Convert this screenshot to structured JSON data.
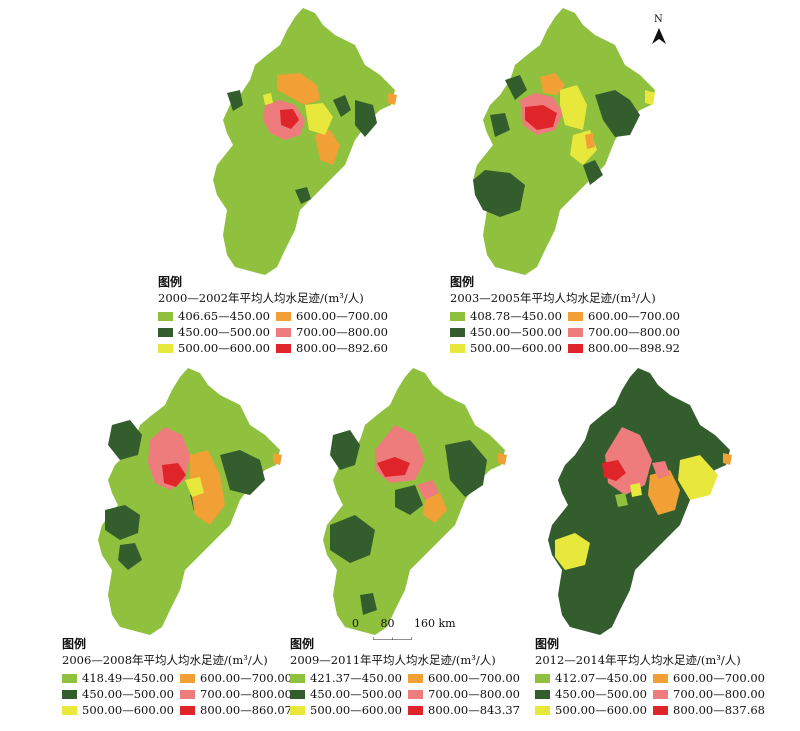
{
  "colors": {
    "c1": "#8fc03e",
    "c2": "#335d2d",
    "c3": "#e8e83c",
    "c4": "#f0a035",
    "c5": "#ef7c7c",
    "c6": "#e0252a"
  },
  "north": {
    "label": "N",
    "icon": "north-arrow-icon"
  },
  "scale": {
    "ticks": [
      "0",
      "80",
      "160 km"
    ]
  },
  "maps": [
    {
      "legend_title": "图例",
      "subtitle": "2000—2002年平均人均水足迹/(m³/人)",
      "classes": [
        {
          "label": "406.65—450.00",
          "color": "#8fc03e"
        },
        {
          "label": "600.00—700.00",
          "color": "#f0a035"
        },
        {
          "label": "450.00—500.00",
          "color": "#335d2d"
        },
        {
          "label": "700.00—800.00",
          "color": "#ef7c7c"
        },
        {
          "label": "500.00—600.00",
          "color": "#e8e83c"
        },
        {
          "label": "800.00—892.60",
          "color": "#e0252a"
        }
      ],
      "base_color": "#8fc03e"
    },
    {
      "legend_title": "图例",
      "subtitle": "2003—2005年平均人均水足迹/(m³/人)",
      "classes": [
        {
          "label": "408.78—450.00",
          "color": "#8fc03e"
        },
        {
          "label": "600.00—700.00",
          "color": "#f0a035"
        },
        {
          "label": "450.00—500.00",
          "color": "#335d2d"
        },
        {
          "label": "700.00—800.00",
          "color": "#ef7c7c"
        },
        {
          "label": "500.00—600.00",
          "color": "#e8e83c"
        },
        {
          "label": "800.00—898.92",
          "color": "#e0252a"
        }
      ],
      "base_color": "#8fc03e"
    },
    {
      "legend_title": "图例",
      "subtitle": "2006—2008年平均人均水足迹/(m³/人)",
      "classes": [
        {
          "label": "418.49—450.00",
          "color": "#8fc03e"
        },
        {
          "label": "600.00—700.00",
          "color": "#f0a035"
        },
        {
          "label": "450.00—500.00",
          "color": "#335d2d"
        },
        {
          "label": "700.00—800.00",
          "color": "#ef7c7c"
        },
        {
          "label": "500.00—600.00",
          "color": "#e8e83c"
        },
        {
          "label": "800.00—860.07",
          "color": "#e0252a"
        }
      ],
      "base_color": "#8fc03e"
    },
    {
      "legend_title": "图例",
      "subtitle": "2009—2011年平均人均水足迹/(m³/人)",
      "classes": [
        {
          "label": "421.37—450.00",
          "color": "#8fc03e"
        },
        {
          "label": "600.00—700.00",
          "color": "#f0a035"
        },
        {
          "label": "450.00—500.00",
          "color": "#335d2d"
        },
        {
          "label": "700.00—800.00",
          "color": "#ef7c7c"
        },
        {
          "label": "500.00—600.00",
          "color": "#e8e83c"
        },
        {
          "label": "800.00—843.37",
          "color": "#e0252a"
        }
      ],
      "base_color": "#8fc03e"
    },
    {
      "legend_title": "图例",
      "subtitle": "2012—2014年平均人均水足迹/(m³/人)",
      "classes": [
        {
          "label": "412.07—450.00",
          "color": "#8fc03e"
        },
        {
          "label": "600.00—700.00",
          "color": "#f0a035"
        },
        {
          "label": "450.00—500.00",
          "color": "#335d2d"
        },
        {
          "label": "700.00—800.00",
          "color": "#ef7c7c"
        },
        {
          "label": "500.00—600.00",
          "color": "#e8e83c"
        },
        {
          "label": "800.00—837.68",
          "color": "#e0252a"
        }
      ],
      "base_color": "#335d2d"
    }
  ]
}
